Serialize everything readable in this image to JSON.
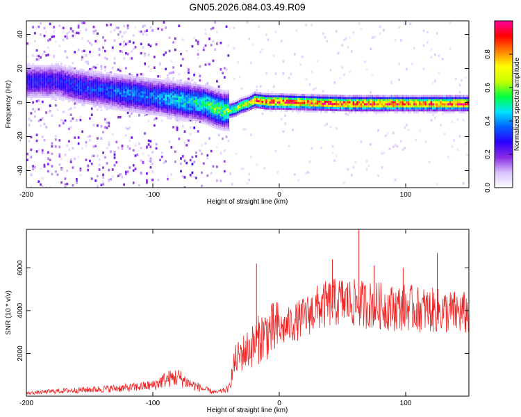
{
  "figure_title": "GN05.2026.084.03.49.R09",
  "chart_data": [
    {
      "type": "heatmap",
      "name": "spectrogram",
      "xlabel": "Height of straight line (km)",
      "ylabel": "Frequency (Hz)",
      "xlim": [
        -200,
        150
      ],
      "ylim": [
        -50,
        48
      ],
      "xticks": [
        -200,
        -100,
        0,
        100
      ],
      "yticks": [
        -40,
        -20,
        0,
        20,
        40
      ],
      "colorbar": {
        "label": "Normalized spectral amplitude",
        "range": [
          0,
          1
        ],
        "ticks": [
          0.0,
          0.2,
          0.4,
          0.6,
          0.8
        ],
        "colormap": [
          "#ffffff",
          "#d9c2ff",
          "#8a2be2",
          "#2a00ff",
          "#0060ff",
          "#00e5ff",
          "#00ff40",
          "#c8ff00",
          "#ffff00",
          "#ff8000",
          "#ff0000",
          "#ff00a0"
        ]
      },
      "ridge": {
        "x": [
          -175,
          -160,
          -140,
          -120,
          -100,
          -80,
          -70,
          -60,
          -50,
          -45,
          -40,
          -35,
          -30,
          -25,
          -20,
          -10,
          0,
          50,
          100,
          150
        ],
        "frequency": [
          13,
          10,
          8,
          6,
          4,
          2,
          1,
          0,
          -3,
          -4,
          -4,
          -3,
          -1,
          0,
          2,
          1,
          1,
          0,
          0,
          0
        ],
        "amplitude": [
          0.3,
          0.35,
          0.35,
          0.4,
          0.4,
          0.5,
          0.5,
          0.55,
          0.6,
          0.6,
          0.6,
          0.65,
          0.7,
          0.75,
          0.9,
          0.9,
          0.95,
          0.95,
          0.95,
          0.95
        ]
      }
    },
    {
      "type": "line",
      "name": "snr",
      "xlabel": "Height of straight line (km)",
      "ylabel": "SNR (10 * v/v)",
      "xlim": [
        -200,
        150
      ],
      "ylim": [
        0,
        7800
      ],
      "xticks": [
        -200,
        -100,
        0,
        100
      ],
      "yticks": [
        2000,
        4000,
        6000
      ],
      "color": "#ee2222",
      "envelope": {
        "x": [
          -200,
          -180,
          -160,
          -140,
          -120,
          -100,
          -90,
          -80,
          -70,
          -60,
          -50,
          -40,
          -35,
          -30,
          -25,
          -20,
          -15,
          -10,
          0,
          10,
          20,
          30,
          40,
          50,
          60,
          70,
          80,
          90,
          100,
          110,
          120,
          130,
          140,
          150
        ],
        "y": [
          120,
          200,
          250,
          300,
          350,
          450,
          700,
          800,
          500,
          300,
          150,
          300,
          1500,
          1800,
          2000,
          2200,
          2500,
          2700,
          2900,
          3200,
          3500,
          3900,
          4100,
          4200,
          4100,
          4050,
          4000,
          3900,
          3950,
          3850,
          3800,
          3750,
          3700,
          3650
        ]
      },
      "spikes": [
        {
          "x": -18,
          "y": 6200
        },
        {
          "x": 42,
          "y": 6400
        },
        {
          "x": 63,
          "y": 7800
        },
        {
          "x": 75,
          "y": 6100
        },
        {
          "x": 98,
          "y": 6000
        },
        {
          "x": 125,
          "y": 6700
        }
      ]
    }
  ]
}
